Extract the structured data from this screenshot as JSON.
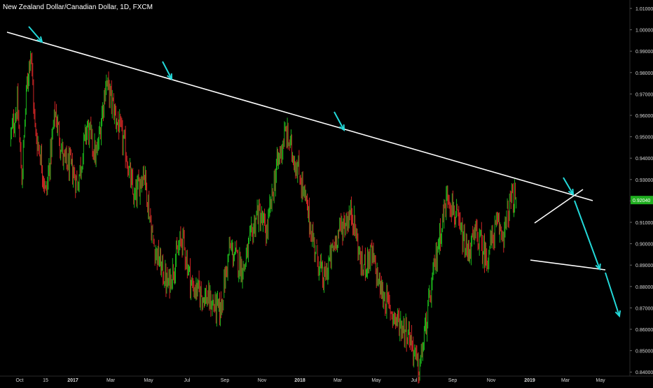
{
  "chart_data": {
    "type": "candlestick",
    "title": "New Zealand Dollar/Canadian Dollar, 1D, FXCM",
    "xlabel": "",
    "ylabel": "",
    "ylim": [
      0.838,
      1.013
    ],
    "y_ticks": [
      "1.01000",
      "1.00000",
      "0.99000",
      "0.98000",
      "0.97000",
      "0.96000",
      "0.95000",
      "0.94000",
      "0.93000",
      "0.92000",
      "0.91000",
      "0.90000",
      "0.89000",
      "0.88000",
      "0.87000",
      "0.86000",
      "0.85000",
      "0.84000"
    ],
    "current_price": "0.92040",
    "x_ticks": [
      "Oct",
      "15",
      "2017",
      "Mar",
      "May",
      "Jul",
      "Sep",
      "Nov",
      "2018",
      "Mar",
      "May",
      "Jul",
      "Sep",
      "Nov",
      "2019",
      "Mar",
      "May"
    ],
    "grid": false,
    "colors": {
      "up": "#1ec71e",
      "down": "#e02828",
      "drawing": "#ffffff",
      "arrow": "#23d9d9",
      "price_badge": "#1fae1f"
    },
    "price_path": [
      {
        "x": "Sep 2016",
        "y": 0.95
      },
      {
        "x": "Oct 2016",
        "y": 0.965
      },
      {
        "x": "Oct 2016",
        "y": 0.93
      },
      {
        "x": "Nov 2016",
        "y": 0.97
      },
      {
        "x": "Nov 2016",
        "y": 0.992
      },
      {
        "x": "Dec 2016",
        "y": 0.952
      },
      {
        "x": "Dec 2016",
        "y": 0.944
      },
      {
        "x": "Jan 2017",
        "y": 0.923
      },
      {
        "x": "Feb 2017",
        "y": 0.962
      },
      {
        "x": "Mar 2017",
        "y": 0.938
      },
      {
        "x": "Apr 2017",
        "y": 0.936
      },
      {
        "x": "Apr 2017",
        "y": 0.928
      },
      {
        "x": "May 2017",
        "y": 0.955
      },
      {
        "x": "May 2017",
        "y": 0.94
      },
      {
        "x": "Jun 2017",
        "y": 0.976
      },
      {
        "x": "Jun 2017",
        "y": 0.96
      },
      {
        "x": "Jul 2017",
        "y": 0.945
      },
      {
        "x": "Jul 2017",
        "y": 0.92
      },
      {
        "x": "Aug 2017",
        "y": 0.935
      },
      {
        "x": "Aug 2017",
        "y": 0.9
      },
      {
        "x": "Sep 2017",
        "y": 0.88
      },
      {
        "x": "Oct 2017",
        "y": 0.903
      },
      {
        "x": "Oct 2017",
        "y": 0.88
      },
      {
        "x": "Nov 2017",
        "y": 0.875
      },
      {
        "x": "Dec 2017",
        "y": 0.868
      },
      {
        "x": "Dec 2017",
        "y": 0.898
      },
      {
        "x": "Jan 2018",
        "y": 0.888
      },
      {
        "x": "Feb 2018",
        "y": 0.915
      },
      {
        "x": "Feb 2018",
        "y": 0.905
      },
      {
        "x": "Mar 2018",
        "y": 0.935
      },
      {
        "x": "Mar 2018",
        "y": 0.952
      },
      {
        "x": "Apr 2018",
        "y": 0.932
      },
      {
        "x": "May 2018",
        "y": 0.9
      },
      {
        "x": "May 2018",
        "y": 0.882
      },
      {
        "x": "Jun 2018",
        "y": 0.905
      },
      {
        "x": "Jul 2018",
        "y": 0.915
      },
      {
        "x": "Jul 2018",
        "y": 0.888
      },
      {
        "x": "Aug 2018",
        "y": 0.895
      },
      {
        "x": "Aug 2018",
        "y": 0.878
      },
      {
        "x": "Sep 2018",
        "y": 0.865
      },
      {
        "x": "Oct 2018",
        "y": 0.858
      },
      {
        "x": "Oct 2018",
        "y": 0.84
      },
      {
        "x": "Nov 2018",
        "y": 0.87
      },
      {
        "x": "Nov 2018",
        "y": 0.9
      },
      {
        "x": "Dec 2018",
        "y": 0.924
      },
      {
        "x": "Dec 2018",
        "y": 0.91
      },
      {
        "x": "Jan 2019",
        "y": 0.895
      },
      {
        "x": "Jan 2019",
        "y": 0.905
      },
      {
        "x": "Feb 2019",
        "y": 0.893
      },
      {
        "x": "Feb 2019",
        "y": 0.908
      },
      {
        "x": "Mar 2019",
        "y": 0.905
      },
      {
        "x": "Mar 2019",
        "y": 0.92
      },
      {
        "x": "Mar 2019",
        "y": 0.921
      }
    ],
    "drawings": [
      {
        "name": "main-resistance-trendline",
        "from": {
          "x": "Sep 2016",
          "y": 0.998
        },
        "to": {
          "x": "Apr 2019",
          "y": 0.918
        }
      },
      {
        "name": "wedge-upper-line",
        "from": {
          "x": "Jan 2019",
          "y": 0.908
        },
        "to": {
          "x": "Mar 2019",
          "y": 0.925
        }
      },
      {
        "name": "wedge-lower-line",
        "from": {
          "x": "Jan 2019",
          "y": 0.892
        },
        "to": {
          "x": "Apr 2019",
          "y": 0.887
        }
      }
    ],
    "arrows": [
      {
        "name": "touch-arrow-2016",
        "at": {
          "x": "Nov 2016",
          "y": 0.994
        }
      },
      {
        "name": "touch-arrow-2017",
        "at": {
          "x": "Jun 2017",
          "y": 0.977
        }
      },
      {
        "name": "touch-arrow-2018",
        "at": {
          "x": "Mar 2018",
          "y": 0.952
        }
      },
      {
        "name": "touch-arrow-2019",
        "at": {
          "x": "Mar 2019",
          "y": 0.922
        }
      },
      {
        "name": "projection-arrow-1",
        "from": {
          "x": "Mar 2019",
          "y": 0.92
        },
        "to": {
          "x": "Apr 2019",
          "y": 0.887
        }
      },
      {
        "name": "projection-arrow-2",
        "from": {
          "x": "Apr 2019",
          "y": 0.886
        },
        "to": {
          "x": "May 2019",
          "y": 0.864
        }
      }
    ]
  }
}
